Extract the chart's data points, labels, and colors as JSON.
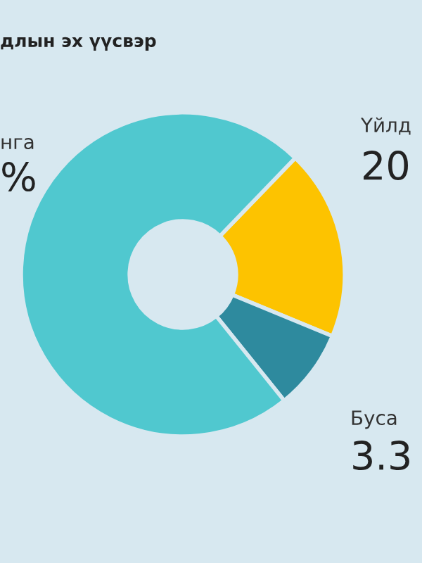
{
  "chart_data": {
    "type": "donut",
    "title": "длын эх үүсвэр",
    "categories": [
      "Үйлд",
      "Буса",
      "нга"
    ],
    "values": [
      19,
      8,
      73
    ],
    "annotations": [
      "20",
      "3.3",
      "%"
    ],
    "colors": [
      "#fdc300",
      "#2e8a9e",
      "#50c8cf"
    ],
    "legend": false
  }
}
